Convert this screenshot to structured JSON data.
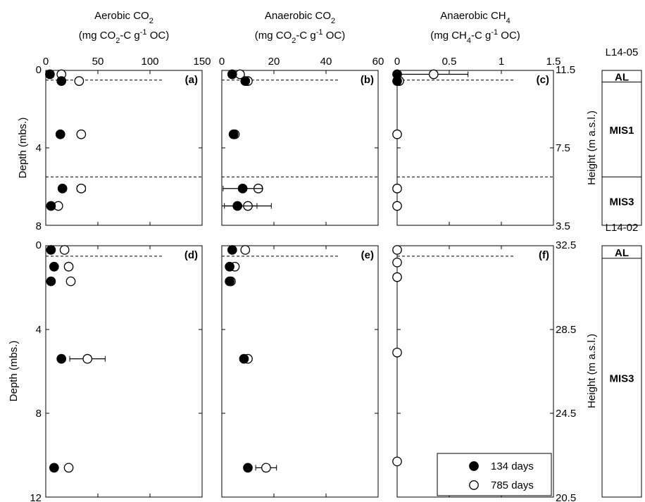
{
  "figure": {
    "columns": [
      {
        "title_line1": "Aerobic CO",
        "title_line1_sub": "2",
        "title_line2": "(mg CO2-C g-1 OC)"
      },
      {
        "title_line1": "Anaerobic CO",
        "title_line1_sub": "2",
        "title_line2": "(mg CO2-C g-1 OC)"
      },
      {
        "title_line1": "Anaerobic CH",
        "title_line1_sub": "4",
        "title_line2": "(mg CH4-C g-1 OC)"
      }
    ],
    "ylabel_left": "Depth (mbs.)",
    "ylabel_right": "Height (m a.s.l.)",
    "legend": [
      "134 days",
      "785 days"
    ]
  },
  "chart_data": [
    {
      "type": "scatter",
      "panel": "(a)",
      "core": "L14-05",
      "xlim": [
        0,
        150
      ],
      "xticks": [
        0,
        50,
        100,
        150
      ],
      "ylim": [
        0,
        8
      ],
      "yticks": [
        0,
        4,
        8
      ],
      "dashed_lines_depth": [
        0.5,
        5.5
      ],
      "series": [
        {
          "name": "134 days",
          "filled": true,
          "points": [
            [
              4,
              0.2,
              0
            ],
            [
              15,
              0.55,
              0
            ],
            [
              14,
              3.3,
              0
            ],
            [
              16,
              6.1,
              0
            ],
            [
              5,
              7.0,
              0
            ]
          ]
        },
        {
          "name": "785 days",
          "filled": false,
          "points": [
            [
              15,
              0.2,
              0
            ],
            [
              32,
              0.55,
              0
            ],
            [
              34,
              3.3,
              0
            ],
            [
              34,
              6.1,
              4
            ],
            [
              12,
              7.0,
              0
            ]
          ]
        }
      ]
    },
    {
      "type": "scatter",
      "panel": "(b)",
      "core": "L14-05",
      "xlim": [
        0,
        60
      ],
      "xticks": [
        0,
        20,
        40,
        60
      ],
      "ylim": [
        0,
        8
      ],
      "yticks": [
        0,
        4,
        8
      ],
      "dashed_lines_depth": [
        0.5,
        5.5
      ],
      "series": [
        {
          "name": "134 days",
          "filled": true,
          "points": [
            [
              4,
              0.2,
              0
            ],
            [
              9,
              0.55,
              0
            ],
            [
              4.5,
              3.3,
              0
            ],
            [
              8,
              6.1,
              7.5
            ],
            [
              6,
              7.0,
              7.5
            ]
          ]
        },
        {
          "name": "785 days",
          "filled": false,
          "points": [
            [
              7,
              0.2,
              0
            ],
            [
              10,
              0.55,
              0
            ],
            [
              5,
              3.3,
              0
            ],
            [
              14,
              6.1,
              0
            ],
            [
              10,
              7.0,
              9
            ]
          ]
        }
      ]
    },
    {
      "type": "scatter",
      "panel": "(c)",
      "core": "L14-05",
      "xlim": [
        0,
        1.5
      ],
      "xticks": [
        0,
        0.5,
        1,
        1.5
      ],
      "ylim": [
        0,
        8
      ],
      "yticks": [
        0,
        4,
        8
      ],
      "y2lim": [
        11.5,
        3.5
      ],
      "y2ticks": [
        11.5,
        7.5,
        3.5
      ],
      "dashed_lines_depth": [
        0.5,
        5.5
      ],
      "series": [
        {
          "name": "134 days",
          "filled": true,
          "points": [
            [
              0,
              0.2,
              0
            ],
            [
              0,
              0.55,
              0
            ]
          ]
        },
        {
          "name": "785 days",
          "filled": false,
          "points": [
            [
              0.35,
              0.2,
              0.33
            ],
            [
              0.02,
              0.55,
              0
            ],
            [
              0,
              3.3,
              0
            ],
            [
              0,
              6.1,
              0
            ],
            [
              0,
              7.0,
              0
            ]
          ]
        }
      ]
    },
    {
      "type": "scatter",
      "panel": "(d)",
      "core": "L14-02",
      "xlim": [
        0,
        150
      ],
      "xticks": [
        0,
        50,
        100,
        150
      ],
      "ylim": [
        0,
        12
      ],
      "yticks": [
        0,
        4,
        8,
        12
      ],
      "dashed_lines_depth": [
        0.5
      ],
      "series": [
        {
          "name": "134 days",
          "filled": true,
          "points": [
            [
              5,
              0.2,
              0
            ],
            [
              8,
              1.0,
              0
            ],
            [
              5,
              1.7,
              0
            ],
            [
              15,
              5.4,
              0
            ],
            [
              8,
              10.6,
              0
            ]
          ]
        },
        {
          "name": "785 days",
          "filled": false,
          "points": [
            [
              18,
              0.2,
              0
            ],
            [
              22,
              1.0,
              0
            ],
            [
              24,
              1.7,
              0
            ],
            [
              40,
              5.4,
              17
            ],
            [
              22,
              10.6,
              0
            ]
          ]
        }
      ]
    },
    {
      "type": "scatter",
      "panel": "(e)",
      "core": "L14-02",
      "xlim": [
        0,
        60
      ],
      "xticks": [
        0,
        20,
        40,
        60
      ],
      "ylim": [
        0,
        12
      ],
      "yticks": [
        0,
        4,
        8,
        12
      ],
      "dashed_lines_depth": [
        0.5
      ],
      "series": [
        {
          "name": "134 days",
          "filled": true,
          "points": [
            [
              4,
              0.2,
              0
            ],
            [
              3,
              1.0,
              0
            ],
            [
              3,
              1.7,
              0
            ],
            [
              8.5,
              5.4,
              0
            ],
            [
              10,
              10.6,
              0
            ]
          ]
        },
        {
          "name": "785 days",
          "filled": false,
          "points": [
            [
              9,
              0.2,
              0
            ],
            [
              5,
              1.0,
              0
            ],
            [
              3.5,
              1.7,
              0
            ],
            [
              10,
              5.4,
              0
            ],
            [
              17,
              10.6,
              4
            ]
          ]
        }
      ]
    },
    {
      "type": "scatter",
      "panel": "(f)",
      "core": "L14-02",
      "xlim": [
        0,
        1.5
      ],
      "xticks": [
        0,
        0.5,
        1,
        1.5
      ],
      "ylim": [
        0,
        12
      ],
      "yticks": [
        0,
        4,
        8,
        12
      ],
      "y2lim": [
        32.5,
        20.5
      ],
      "y2ticks": [
        32.5,
        28.5,
        24.5,
        20.5
      ],
      "dashed_lines_depth": [
        0.5
      ],
      "series": [
        {
          "name": "134 days",
          "filled": true,
          "points": []
        },
        {
          "name": "785 days",
          "filled": false,
          "points": [
            [
              0,
              0.2,
              0
            ],
            [
              0,
              0.8,
              0
            ],
            [
              0,
              1.5,
              0
            ],
            [
              0,
              5.1,
              0
            ],
            [
              0,
              10.3,
              0
            ]
          ]
        }
      ]
    }
  ],
  "stratigraphy": [
    {
      "core": "L14-05",
      "depth_max": 8,
      "units": [
        {
          "name": "AL",
          "top": 0,
          "bottom": 0.6
        },
        {
          "name": "MIS1",
          "top": 0.6,
          "bottom": 5.5
        },
        {
          "name": "MIS3",
          "top": 5.5,
          "bottom": 8
        }
      ]
    },
    {
      "core": "L14-02",
      "depth_max": 12,
      "units": [
        {
          "name": "AL",
          "top": 0,
          "bottom": 0.6
        },
        {
          "name": "MIS3",
          "top": 0.6,
          "bottom": 12
        }
      ]
    }
  ]
}
